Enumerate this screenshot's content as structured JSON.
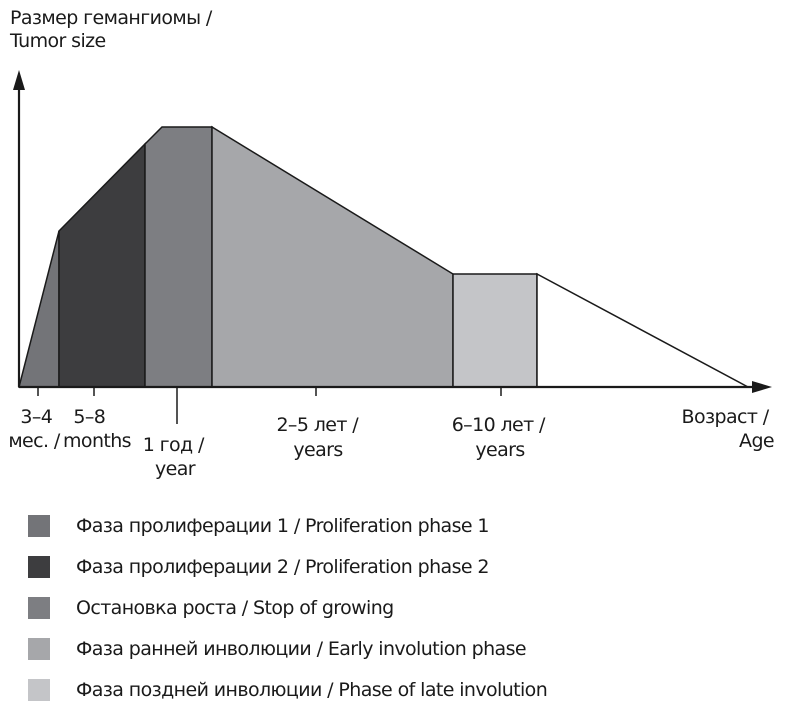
{
  "y_axis_label": [
    "Размер гемангиомы /",
    "Tumor size"
  ],
  "x_axis_label": [
    "Возраст /",
    "Age"
  ],
  "ticks": [
    {
      "lines": [
        "3–4",
        "мес. /"
      ]
    },
    {
      "lines": [
        "5–8",
        "months"
      ]
    },
    {
      "lines": [
        "1 год /",
        "year"
      ]
    },
    {
      "lines": [
        "2–5 лет /",
        "years"
      ]
    },
    {
      "lines": [
        "6–10 лет /",
        "years"
      ]
    }
  ],
  "phases": [
    {
      "label": "Фаза пролиферации 1 / Proliferation phase 1",
      "color": "#737478"
    },
    {
      "label": "Фаза пролиферации 2 / Proliferation phase 2",
      "color": "#3d3d3f"
    },
    {
      "label": "Остановка роста / Stop of growing",
      "color": "#7d7e82"
    },
    {
      "label": "Фаза ранней инволюции / Early involution phase",
      "color": "#a6a7aa"
    },
    {
      "label": "Фаза поздней инволюции / Phase of late involution",
      "color": "#c4c5c8"
    }
  ],
  "trailing_color": "#ffffff"
}
